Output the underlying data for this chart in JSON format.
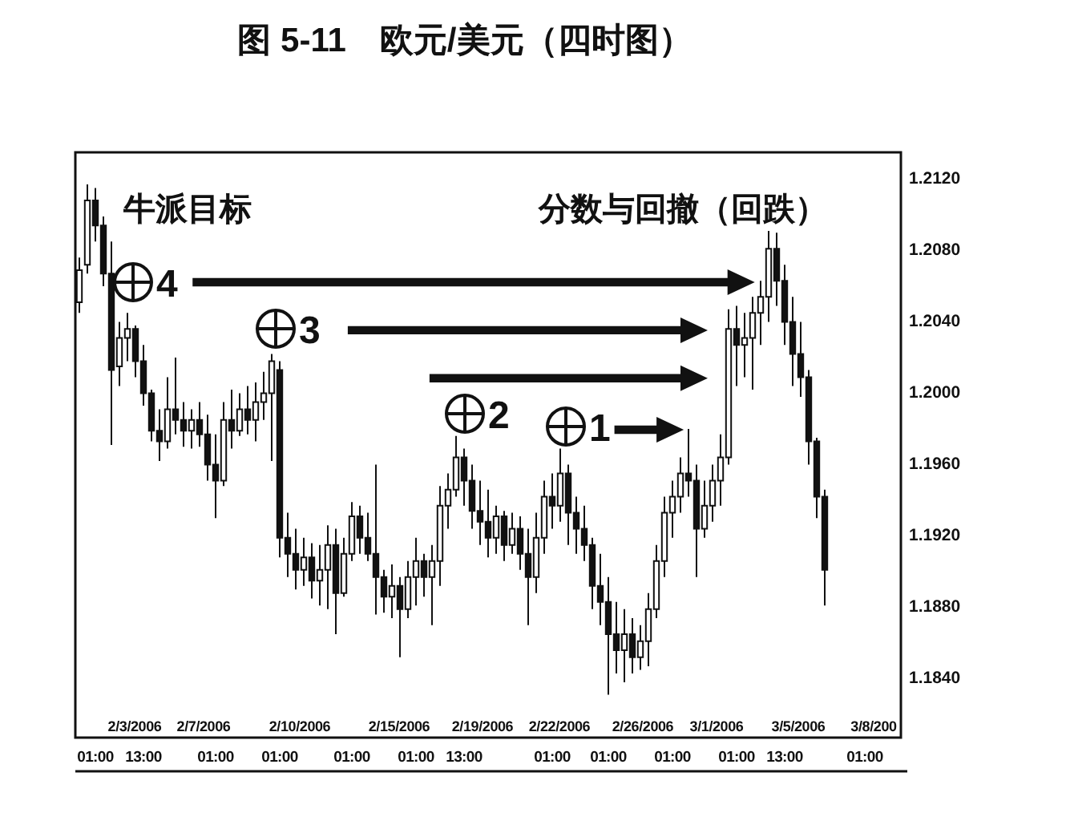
{
  "chart_data": {
    "type": "candlestick",
    "title": "图 5-11　欧元/美元（四时图）",
    "categories": [
      null,
      null,
      "01:00",
      null,
      null,
      null,
      null,
      null,
      "13:00",
      null,
      null,
      null,
      null,
      null,
      null,
      null,
      null,
      "01:00",
      null,
      null,
      null,
      null,
      null,
      null,
      null,
      "01:00",
      null,
      null,
      null,
      null,
      null,
      null,
      null,
      null,
      "01:00",
      null,
      null,
      null,
      null,
      null,
      null,
      null,
      "01:00",
      null,
      null,
      null,
      null,
      null,
      "13:00",
      null,
      null,
      null,
      null,
      null,
      null,
      null,
      null,
      null,
      null,
      "01:00",
      null,
      null,
      null,
      null,
      null,
      null,
      "01:00",
      null,
      null,
      null,
      null,
      null,
      null,
      null,
      "01:00",
      null,
      null,
      null,
      null,
      null,
      null,
      null,
      "01:00",
      null,
      null,
      null,
      null,
      null,
      "13:00",
      null,
      null,
      null,
      null,
      null,
      null,
      null,
      null,
      null,
      "01:00",
      null,
      null,
      null,
      null
    ],
    "ohlc": [
      [
        1.205,
        1.2075,
        1.2044,
        1.2068
      ],
      [
        1.2071,
        1.2116,
        1.2066,
        1.2107
      ],
      [
        1.2107,
        1.2114,
        1.2084,
        1.2093
      ],
      [
        1.2093,
        1.2098,
        1.2059,
        1.2066
      ],
      [
        1.2066,
        1.2084,
        1.197,
        1.2012
      ],
      [
        1.2014,
        1.2039,
        1.2003,
        1.203
      ],
      [
        1.203,
        1.2044,
        1.2017,
        1.2035
      ],
      [
        1.2035,
        1.2037,
        1.2008,
        1.2017
      ],
      [
        1.2017,
        1.2026,
        1.1992,
        1.1999
      ],
      [
        1.1999,
        1.2001,
        1.1972,
        1.1978
      ],
      [
        1.1978,
        1.199,
        1.1961,
        1.1972
      ],
      [
        1.1972,
        1.2008,
        1.1968,
        1.199
      ],
      [
        1.199,
        1.2019,
        1.1976,
        1.1984
      ],
      [
        1.1984,
        1.1994,
        1.1969,
        1.1978
      ],
      [
        1.1978,
        1.199,
        1.1968,
        1.1984
      ],
      [
        1.1984,
        1.1994,
        1.1969,
        1.1976
      ],
      [
        1.1976,
        1.1987,
        1.195,
        1.1959
      ],
      [
        1.1959,
        1.1976,
        1.1929,
        1.195
      ],
      [
        1.195,
        1.1994,
        1.1947,
        1.1984
      ],
      [
        1.1984,
        1.2001,
        1.1968,
        1.1978
      ],
      [
        1.1978,
        1.1999,
        1.1975,
        1.199
      ],
      [
        1.199,
        1.2003,
        1.1976,
        1.1984
      ],
      [
        1.1984,
        1.2005,
        1.1972,
        1.1994
      ],
      [
        1.1994,
        1.2011,
        1.1984,
        1.1999
      ],
      [
        1.1999,
        1.2021,
        1.1961,
        1.2017
      ],
      [
        1.2012,
        1.2017,
        1.1907,
        1.1918
      ],
      [
        1.1918,
        1.1932,
        1.1896,
        1.1909
      ],
      [
        1.1909,
        1.1923,
        1.1889,
        1.19
      ],
      [
        1.19,
        1.1918,
        1.1891,
        1.1907
      ],
      [
        1.1907,
        1.1915,
        1.1884,
        1.1894
      ],
      [
        1.1894,
        1.1914,
        1.188,
        1.19
      ],
      [
        1.19,
        1.1925,
        1.1878,
        1.1914
      ],
      [
        1.1914,
        1.1923,
        1.1864,
        1.1887
      ],
      [
        1.1887,
        1.1918,
        1.1885,
        1.1909
      ],
      [
        1.1909,
        1.1938,
        1.1905,
        1.193
      ],
      [
        1.193,
        1.1936,
        1.1909,
        1.1918
      ],
      [
        1.1918,
        1.1932,
        1.1905,
        1.1909
      ],
      [
        1.1909,
        1.1959,
        1.1875,
        1.1896
      ],
      [
        1.1896,
        1.19,
        1.1876,
        1.1885
      ],
      [
        1.1885,
        1.1903,
        1.1873,
        1.1891
      ],
      [
        1.1891,
        1.1896,
        1.1851,
        1.1878
      ],
      [
        1.1878,
        1.1905,
        1.1873,
        1.1896
      ],
      [
        1.1896,
        1.1918,
        1.188,
        1.1905
      ],
      [
        1.1905,
        1.1909,
        1.1885,
        1.1896
      ],
      [
        1.1896,
        1.1914,
        1.1869,
        1.1905
      ],
      [
        1.1905,
        1.1947,
        1.1891,
        1.1936
      ],
      [
        1.1936,
        1.1954,
        1.1923,
        1.1945
      ],
      [
        1.1945,
        1.1975,
        1.1941,
        1.1963
      ],
      [
        1.1963,
        1.1968,
        1.1936,
        1.195
      ],
      [
        1.195,
        1.1959,
        1.1923,
        1.1933
      ],
      [
        1.1933,
        1.195,
        1.1914,
        1.1927
      ],
      [
        1.1927,
        1.1945,
        1.1907,
        1.1918
      ],
      [
        1.1918,
        1.1936,
        1.1909,
        1.193
      ],
      [
        1.193,
        1.1933,
        1.1905,
        1.1914
      ],
      [
        1.1914,
        1.1932,
        1.1909,
        1.1923
      ],
      [
        1.1923,
        1.193,
        1.19,
        1.1909
      ],
      [
        1.1909,
        1.1923,
        1.1869,
        1.1896
      ],
      [
        1.1896,
        1.1932,
        1.1887,
        1.1918
      ],
      [
        1.1918,
        1.195,
        1.1909,
        1.1941
      ],
      [
        1.1941,
        1.1954,
        1.1923,
        1.1936
      ],
      [
        1.1936,
        1.1968,
        1.1927,
        1.1954
      ],
      [
        1.1954,
        1.1959,
        1.1914,
        1.1932
      ],
      [
        1.1932,
        1.1941,
        1.1909,
        1.1923
      ],
      [
        1.1923,
        1.1936,
        1.1905,
        1.1914
      ],
      [
        1.1914,
        1.1918,
        1.1878,
        1.1891
      ],
      [
        1.1891,
        1.1909,
        1.1869,
        1.1882
      ],
      [
        1.1882,
        1.1896,
        1.183,
        1.1864
      ],
      [
        1.1864,
        1.1882,
        1.1842,
        1.1855
      ],
      [
        1.1855,
        1.1878,
        1.1837,
        1.1864
      ],
      [
        1.1864,
        1.1873,
        1.1842,
        1.1851
      ],
      [
        1.1851,
        1.1869,
        1.1844,
        1.186
      ],
      [
        1.186,
        1.1887,
        1.1846,
        1.1878
      ],
      [
        1.1878,
        1.1914,
        1.1873,
        1.1905
      ],
      [
        1.1905,
        1.1941,
        1.1896,
        1.1932
      ],
      [
        1.1932,
        1.195,
        1.1918,
        1.1941
      ],
      [
        1.1941,
        1.1963,
        1.1932,
        1.1954
      ],
      [
        1.1954,
        1.1979,
        1.1941,
        1.195
      ],
      [
        1.195,
        1.1959,
        1.1896,
        1.1923
      ],
      [
        1.1923,
        1.195,
        1.1918,
        1.1936
      ],
      [
        1.1936,
        1.1959,
        1.1927,
        1.195
      ],
      [
        1.195,
        1.1976,
        1.1936,
        1.1963
      ],
      [
        1.1963,
        1.2046,
        1.1959,
        1.2035
      ],
      [
        1.2035,
        1.2048,
        1.2003,
        1.2026
      ],
      [
        1.2026,
        1.2044,
        1.2008,
        1.203
      ],
      [
        1.203,
        1.2053,
        1.2001,
        1.2044
      ],
      [
        1.2044,
        1.2062,
        1.2026,
        1.2053
      ],
      [
        1.2053,
        1.209,
        1.2039,
        1.208
      ],
      [
        1.208,
        1.2089,
        1.2048,
        1.2062
      ],
      [
        1.2062,
        1.2071,
        1.2026,
        1.2039
      ],
      [
        1.2039,
        1.2053,
        1.2003,
        1.2021
      ],
      [
        1.2021,
        1.2039,
        1.1997,
        1.2008
      ],
      [
        1.2008,
        1.2012,
        1.1959,
        1.1972
      ],
      [
        1.1972,
        1.1974,
        1.1929,
        1.1941
      ],
      [
        1.1941,
        1.1945,
        1.188,
        1.19
      ],
      null,
      null,
      null,
      null,
      null,
      null,
      null,
      null,
      null
    ],
    "ylim": [
      1.1806,
      1.2134
    ],
    "yticks": [
      {
        "value": 1.184,
        "label": "1.1840"
      },
      {
        "value": 1.188,
        "label": "1.1880"
      },
      {
        "value": 1.192,
        "label": "1.1920"
      },
      {
        "value": 1.196,
        "label": "1.1960"
      },
      {
        "value": 1.2,
        "label": "1.2000"
      },
      {
        "value": 1.204,
        "label": "1.2040"
      },
      {
        "value": 1.208,
        "label": "1.2080"
      },
      {
        "value": 1.212,
        "label": "1.2120"
      }
    ],
    "annotations": [
      "牛派目标",
      "分数与回撤（回跌）",
      "2/3/2006",
      "2/7/2006",
      "2/10/2006",
      "2/15/2006",
      "2/19/2006",
      "2/22/2006",
      "2/26/2006",
      "3/1/2006",
      "3/5/2006",
      "3/8/200",
      "4",
      "3",
      "2",
      "1"
    ]
  }
}
